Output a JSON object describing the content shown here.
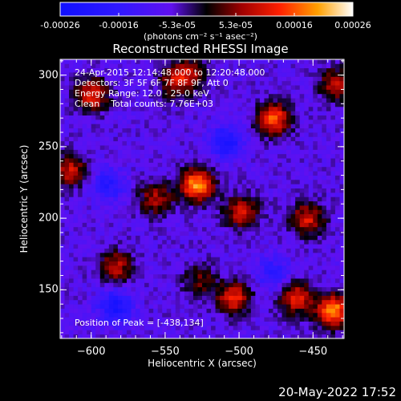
{
  "colorbar": {
    "ticks": [
      "-0.00026",
      "-0.00016",
      "-5.3e-05",
      "5.3e-05",
      "0.00016",
      "0.00026"
    ],
    "units_label": "(photons cm⁻² s⁻¹ asec⁻²)"
  },
  "title": "Reconstructed RHESSI Image",
  "annotations": {
    "time_range": "24-Apr-2015 12:14:48.000 to 12:20:48.000",
    "detectors": "Detectors: 3F 5F 6F 7F 8F 9F, Att 0",
    "energy": "Energy Range: 12.0 - 25.0 keV",
    "method": "Clean    Total counts: 7.76E+03",
    "peak": "Position of Peak = [-438,134]"
  },
  "chart_data": {
    "type": "heatmap",
    "title": "Reconstructed RHESSI Image",
    "xlabel": "Heliocentric X (arcsec)",
    "ylabel": "Heliocentric Y (arcsec)",
    "xlim": [
      -621,
      -429
    ],
    "ylim": [
      116,
      311
    ],
    "xticks": [
      -600,
      -550,
      -500,
      -450
    ],
    "yticks": [
      150,
      200,
      250,
      300
    ],
    "xtick_labels": [
      "−600",
      "−550",
      "−500",
      "−450"
    ],
    "ytick_labels": [
      "150",
      "200",
      "250",
      "300"
    ],
    "colorbar_range": [
      -0.00026,
      0.00026
    ],
    "peak_position": [
      -438,
      134
    ],
    "bright_sources": [
      {
        "x": -530,
        "y": 222,
        "intensity": 0.00026
      },
      {
        "x": -478,
        "y": 268,
        "intensity": 0.00022
      },
      {
        "x": -438,
        "y": 134,
        "intensity": 0.00026
      },
      {
        "x": -601,
        "y": 285,
        "intensity": 0.00018
      },
      {
        "x": -505,
        "y": 143,
        "intensity": 0.00019
      },
      {
        "x": -463,
        "y": 143,
        "intensity": 0.00018
      },
      {
        "x": -585,
        "y": 165,
        "intensity": 0.00015
      },
      {
        "x": -500,
        "y": 203,
        "intensity": 0.00016
      },
      {
        "x": -455,
        "y": 198,
        "intensity": 0.00017
      },
      {
        "x": -616,
        "y": 232,
        "intensity": 0.00016
      },
      {
        "x": -558,
        "y": 212,
        "intensity": 0.00014
      },
      {
        "x": -545,
        "y": 294,
        "intensity": 0.00013
      },
      {
        "x": -435,
        "y": 292,
        "intensity": 0.00016
      },
      {
        "x": -535,
        "y": 300,
        "intensity": 0.00012
      },
      {
        "x": -528,
        "y": 155,
        "intensity": 0.0001
      }
    ],
    "dim_sources": [
      {
        "x": -585,
        "y": 137,
        "intensity": -0.00016
      },
      {
        "x": -510,
        "y": 252,
        "intensity": -0.00015
      },
      {
        "x": -590,
        "y": 222,
        "intensity": -0.00012
      },
      {
        "x": -478,
        "y": 160,
        "intensity": -0.0001
      }
    ]
  },
  "footer": {
    "date": "20-May-2022 17:52"
  }
}
